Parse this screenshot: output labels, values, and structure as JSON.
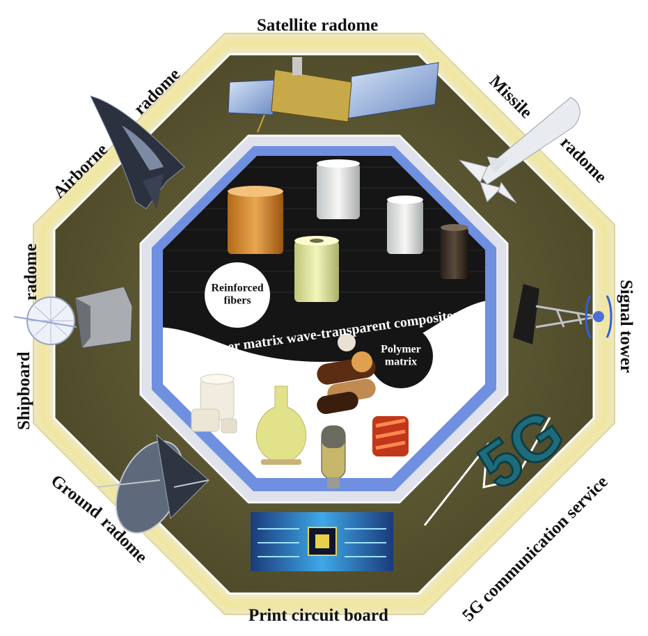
{
  "labels": {
    "satellite": "Satellite radome",
    "missile_1": "Missile",
    "missile_2": "radome",
    "airborne_1": "Airborne",
    "airborne_2": "radome",
    "shipboard_1": "Shipboard",
    "shipboard_2": "radome",
    "signal_tower": "Signal tower",
    "ground_1": "Ground",
    "ground_2": "radome",
    "pcb": "Print circuit board",
    "fiveg": "5G communication service",
    "fiveg_logo": "5G"
  },
  "center": {
    "title": "Polymer matrix wave-transparent composites",
    "reinforced_1": "Reinforced",
    "reinforced_2": "fibers",
    "polymer_1": "Polymer",
    "polymer_2": "matrix"
  },
  "colors": {
    "outer_frame": "#eee8c4",
    "glow": "#f2e58a",
    "octagon_fill": "#5f5a33",
    "inner_frame": "#dfe2ea",
    "blue_ring": "#6f8fe0",
    "dark_half": "#151515",
    "light_half": "#ffffff"
  }
}
